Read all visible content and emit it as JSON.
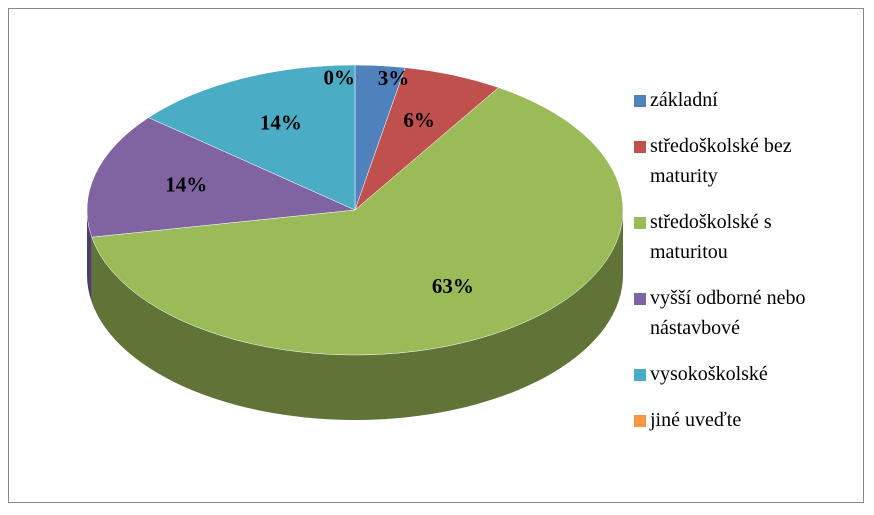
{
  "chart_data": {
    "type": "pie",
    "categories": [
      "základní",
      "středoškolské bez maturity",
      "středoškolské s maturitou",
      "vyšší odborné nebo nástavbové",
      "vysokoškolské",
      "jiné uveďte"
    ],
    "values": [
      3,
      6,
      63,
      14,
      14,
      0
    ],
    "value_labels": [
      "3%",
      "6%",
      "63%",
      "14%",
      "14%",
      "0%"
    ],
    "colors": [
      "#4f81bd",
      "#c0504d",
      "#9bbb59",
      "#8064a2",
      "#4bacc6",
      "#f79646"
    ],
    "legend": "right"
  }
}
